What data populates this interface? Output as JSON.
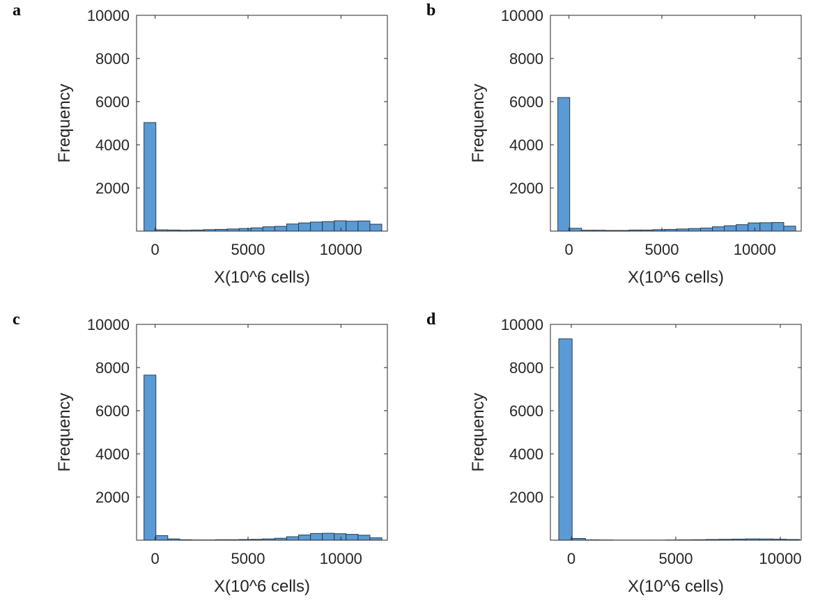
{
  "chart_data": [
    {
      "type": "bar",
      "panel_label": "a",
      "xlabel": "X(10^6 cells)",
      "ylabel": "Frequency",
      "ylim": [
        0,
        10000
      ],
      "xlim": [
        -1000,
        12500
      ],
      "yticks": [
        2000,
        4000,
        6000,
        8000,
        10000
      ],
      "xticks": [
        0,
        5000,
        10000
      ],
      "bin_start": -600,
      "bin_width": 640,
      "values": [
        5030,
        60,
        50,
        40,
        50,
        70,
        80,
        100,
        120,
        150,
        200,
        220,
        330,
        380,
        420,
        440,
        480,
        460,
        470,
        320
      ],
      "grid": false,
      "bar_color": "#5B9BD5"
    },
    {
      "type": "bar",
      "panel_label": "b",
      "xlabel": "X(10^6 cells)",
      "ylabel": "Frequency",
      "ylim": [
        0,
        10000
      ],
      "xlim": [
        -1000,
        12500
      ],
      "yticks": [
        2000,
        4000,
        6000,
        8000,
        10000
      ],
      "xticks": [
        0,
        5000,
        10000
      ],
      "bin_start": -600,
      "bin_width": 640,
      "values": [
        6190,
        130,
        40,
        40,
        30,
        30,
        50,
        50,
        70,
        80,
        100,
        120,
        140,
        200,
        250,
        300,
        380,
        390,
        400,
        230
      ],
      "grid": false,
      "bar_color": "#5B9BD5"
    },
    {
      "type": "bar",
      "panel_label": "c",
      "xlabel": "X(10^6 cells)",
      "ylabel": "Frequency",
      "ylim": [
        0,
        10000
      ],
      "xlim": [
        -1000,
        12500
      ],
      "yticks": [
        2000,
        4000,
        6000,
        8000,
        10000
      ],
      "xticks": [
        0,
        5000,
        10000
      ],
      "bin_start": -600,
      "bin_width": 640,
      "values": [
        7650,
        210,
        60,
        20,
        10,
        10,
        20,
        20,
        30,
        40,
        60,
        90,
        160,
        240,
        310,
        320,
        300,
        270,
        230,
        110
      ],
      "grid": false,
      "bar_color": "#5B9BD5"
    },
    {
      "type": "bar",
      "panel_label": "d",
      "xlabel": "X(10^6 cells)",
      "ylabel": "Frequency",
      "ylim": [
        0,
        10000
      ],
      "xlim": [
        -1000,
        11000
      ],
      "yticks": [
        2000,
        4000,
        6000,
        8000,
        10000
      ],
      "xticks": [
        0,
        5000,
        10000
      ],
      "bin_start": -600,
      "bin_width": 640,
      "values": [
        9330,
        80,
        15,
        10,
        5,
        5,
        5,
        5,
        10,
        15,
        20,
        30,
        40,
        50,
        60,
        55,
        45,
        30
      ],
      "grid": false,
      "bar_color": "#5B9BD5"
    }
  ]
}
